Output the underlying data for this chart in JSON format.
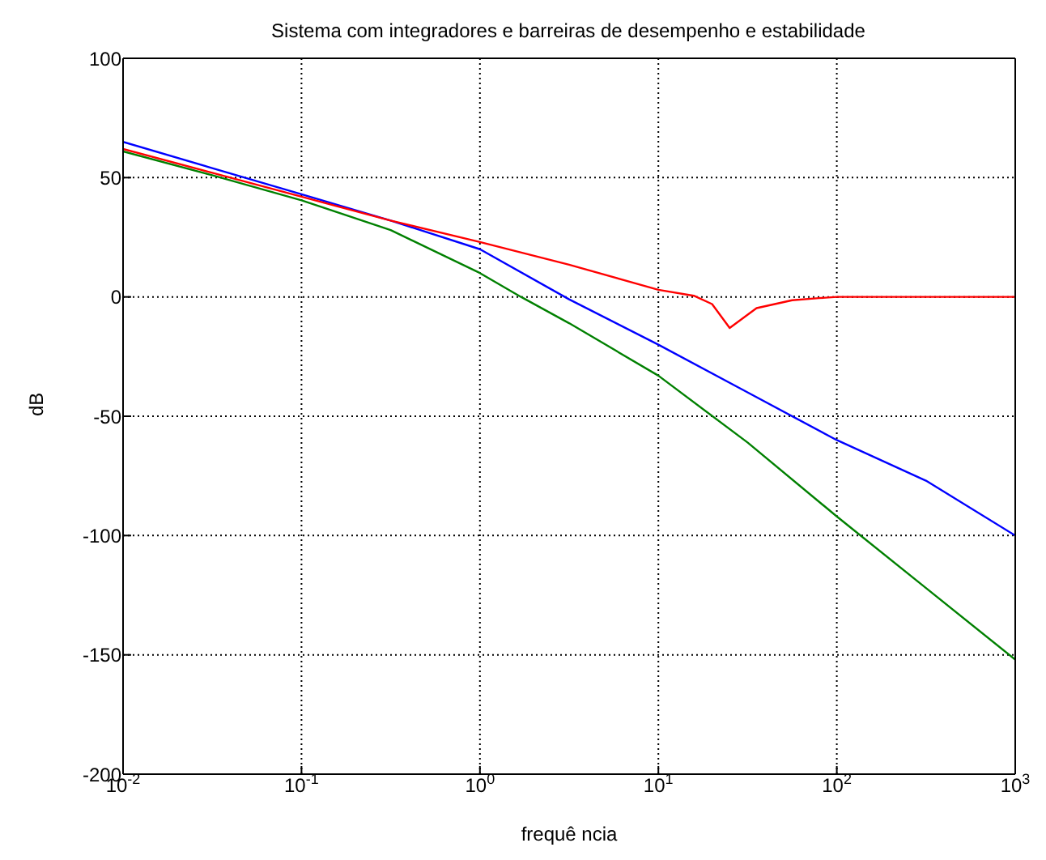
{
  "chart_data": {
    "type": "line",
    "title": "Sistema com integradores e barreiras de desempenho e estabilidade",
    "xlabel": "frequê ncia",
    "ylabel": "dB",
    "log": "x",
    "grid": true,
    "marker": "none",
    "line_style": "solid",
    "xlim": [
      0.01,
      1000
    ],
    "xticks": [
      {
        "value": 0.01,
        "label": "10$^{-2}$"
      },
      {
        "value": 0.1,
        "label": "10$^{-1}$"
      },
      {
        "value": 1,
        "label": "10$^{0}$"
      },
      {
        "value": 10,
        "label": "10$^{1}$"
      },
      {
        "value": 100,
        "label": "10$^{2}$"
      },
      {
        "value": 1000,
        "label": "10$^{3}$"
      }
    ],
    "ylim": [
      -200,
      100
    ],
    "yticks": [
      -200,
      -150,
      -100,
      -50,
      0,
      50,
      100
    ],
    "series": [
      {
        "color": "#0000ff",
        "x": [
          0.01,
          0.0316,
          0.1,
          0.316,
          1,
          3.16,
          10,
          31.6,
          100,
          316,
          1000
        ],
        "values": [
          65,
          54,
          43,
          32,
          20,
          -1,
          -20,
          -40,
          -60,
          -77,
          -100
        ]
      },
      {
        "color": "#008000",
        "x": [
          0.01,
          0.0316,
          0.1,
          0.316,
          1,
          1.7,
          3.16,
          10,
          31.6,
          100,
          316,
          1000
        ],
        "values": [
          61,
          51,
          40.5,
          28,
          10,
          0,
          -11,
          -33,
          -61,
          -92,
          -122,
          -152
        ]
      },
      {
        "color": "#ff0000",
        "x": [
          0.01,
          0.0316,
          0.1,
          0.316,
          1,
          3.16,
          10,
          15.8,
          20,
          25.1,
          35.5,
          56.2,
          79.4,
          100,
          1000
        ],
        "values": [
          62,
          52,
          42,
          32,
          23,
          13.5,
          3,
          0.5,
          -3,
          -13,
          -4.7,
          -1.4,
          -0.5,
          0,
          0
        ]
      }
    ]
  }
}
